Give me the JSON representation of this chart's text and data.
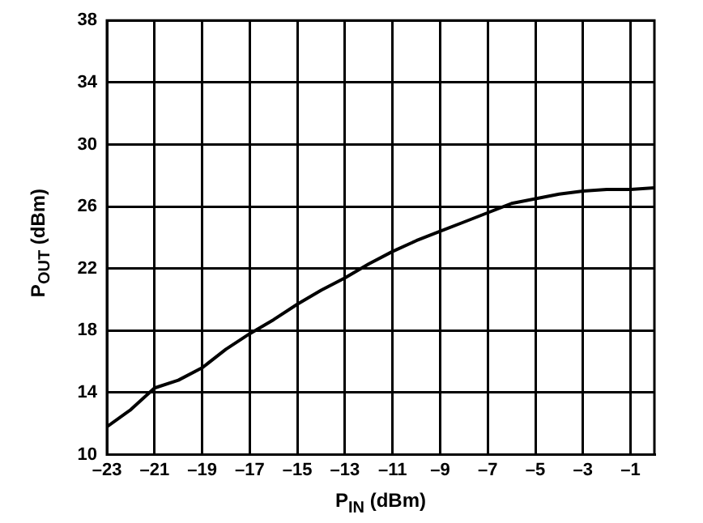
{
  "chart_data": {
    "type": "line",
    "xlabel": "P$_{IN}$ (dBm)",
    "ylabel": "P$_{OUT}$ (dBm)",
    "x": [
      -23,
      -22,
      -21,
      -20,
      -19,
      -18,
      -17,
      -16,
      -15,
      -14,
      -13,
      -12,
      -11,
      -10,
      -9,
      -8,
      -7,
      -6,
      -5,
      -4,
      -3,
      -2,
      -1,
      0
    ],
    "series": [
      {
        "color": "#000000",
        "values": [
          11.8,
          12.9,
          14.3,
          14.8,
          15.6,
          16.8,
          17.8,
          18.7,
          19.7,
          20.6,
          21.4,
          22.3,
          23.1,
          23.8,
          24.4,
          25.0,
          25.6,
          26.2,
          26.5,
          26.8,
          27.0,
          27.1,
          27.1,
          27.2
        ]
      }
    ],
    "xlim": [
      -23,
      0
    ],
    "xticks": [
      {
        "value": -23,
        "label": "–23"
      },
      {
        "value": -21,
        "label": "–21"
      },
      {
        "value": -19,
        "label": "–19"
      },
      {
        "value": -17,
        "label": "–17"
      },
      {
        "value": -15,
        "label": "–15"
      },
      {
        "value": -13,
        "label": "–13"
      },
      {
        "value": -11,
        "label": "–11"
      },
      {
        "value": -9,
        "label": "–9"
      },
      {
        "value": -7,
        "label": "–7"
      },
      {
        "value": -5,
        "label": "–5"
      },
      {
        "value": -3,
        "label": "–3"
      },
      {
        "value": -1,
        "label": "–1"
      }
    ],
    "ylim": [
      10,
      38
    ],
    "yticks": [
      10,
      14,
      18,
      22,
      26,
      30,
      34,
      38
    ],
    "grid": true,
    "legend": false,
    "marker": "none",
    "line_style": "solid"
  }
}
